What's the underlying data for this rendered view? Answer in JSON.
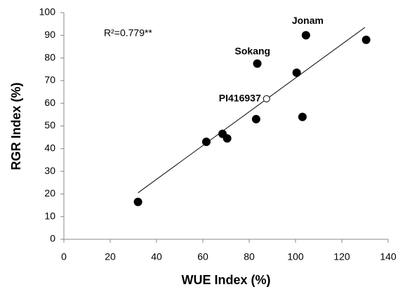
{
  "chart_data": {
    "type": "scatter",
    "x_label": "WUE Index (%)",
    "y_label": "RGR Index (%)",
    "annotation": "R²=0.779**",
    "x": [
      32,
      61.5,
      68.5,
      70.5,
      83,
      83.5,
      87.5,
      100.5,
      103,
      104.5,
      130.5
    ],
    "y": [
      16.5,
      43,
      46.5,
      44.5,
      53,
      77.5,
      62,
      73.5,
      54,
      90,
      88
    ],
    "labels": [
      null,
      null,
      null,
      null,
      null,
      "Sokang",
      "PI416937",
      null,
      null,
      "Jonam",
      null
    ],
    "markers": [
      "filled",
      "filled",
      "filled",
      "filled",
      "filled",
      "filled",
      "open",
      "filled",
      "filled",
      "filled",
      "filled"
    ],
    "color": "#000000",
    "trendline": {
      "x": [
        32,
        130
      ],
      "y": [
        20.5,
        93.5
      ]
    },
    "xlim": [
      0,
      140
    ],
    "xticks": [
      0,
      20,
      40,
      60,
      80,
      100,
      120,
      140
    ],
    "ylim": [
      0,
      100
    ],
    "yticks": [
      0,
      10,
      20,
      30,
      40,
      50,
      60,
      70,
      80,
      90,
      100
    ],
    "grid": false
  }
}
